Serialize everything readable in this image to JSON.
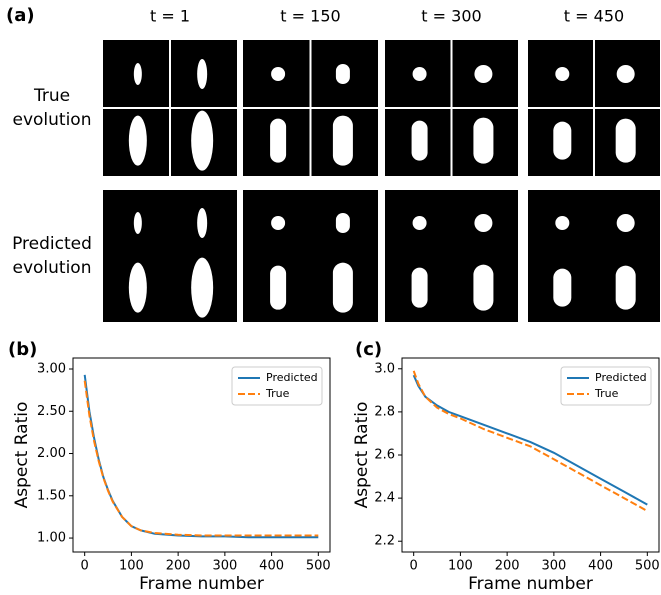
{
  "panel_a": {
    "label": "(a)",
    "columns": [
      "t = 1",
      "t = 150",
      "t = 300",
      "t = 450"
    ],
    "rows": [
      [
        "True",
        "evolution"
      ],
      [
        "Predicted",
        "evolution"
      ]
    ]
  },
  "chart_data": [
    {
      "type": "line",
      "label": "(b)",
      "xlabel": "Frame number",
      "ylabel": "Aspect Ratio",
      "x": [
        0,
        10,
        20,
        30,
        40,
        50,
        60,
        80,
        100,
        120,
        150,
        200,
        250,
        300,
        350,
        400,
        450,
        500
      ],
      "series": [
        {
          "name": "Predicted",
          "color": "#1f77b4",
          "dash": "solid",
          "values": [
            2.93,
            2.5,
            2.19,
            1.93,
            1.72,
            1.57,
            1.44,
            1.25,
            1.14,
            1.09,
            1.05,
            1.03,
            1.02,
            1.02,
            1.01,
            1.01,
            1.01,
            1.01
          ]
        },
        {
          "name": "True",
          "color": "#ff7f0e",
          "dash": "dashed",
          "values": [
            2.86,
            2.45,
            2.15,
            1.91,
            1.71,
            1.56,
            1.43,
            1.25,
            1.14,
            1.09,
            1.06,
            1.04,
            1.03,
            1.03,
            1.03,
            1.03,
            1.03,
            1.03
          ]
        }
      ],
      "xlim": [
        -25,
        525
      ],
      "xticks": [
        0,
        100,
        200,
        300,
        400,
        500
      ],
      "ylim": [
        0.835,
        3.13
      ],
      "yticks": [
        {
          "value": 1,
          "label": "1.00"
        },
        {
          "value": 1.5,
          "label": "1.50"
        },
        {
          "value": 2,
          "label": "2.00"
        },
        {
          "value": 2.5,
          "label": "2.50"
        },
        {
          "value": 3,
          "label": "3.00"
        }
      ],
      "legend": "upper right"
    },
    {
      "type": "line",
      "label": "(c)",
      "xlabel": "Frame number",
      "ylabel": "Aspect Ratio",
      "x": [
        0,
        10,
        25,
        50,
        75,
        100,
        150,
        200,
        250,
        300,
        350,
        400,
        450,
        500
      ],
      "series": [
        {
          "name": "Predicted",
          "color": "#1f77b4",
          "dash": "solid",
          "values": [
            2.97,
            2.92,
            2.87,
            2.83,
            2.8,
            2.78,
            2.74,
            2.7,
            2.66,
            2.61,
            2.55,
            2.49,
            2.43,
            2.37
          ]
        },
        {
          "name": "True",
          "color": "#ff7f0e",
          "dash": "dashed",
          "values": [
            2.99,
            2.93,
            2.87,
            2.82,
            2.79,
            2.77,
            2.72,
            2.68,
            2.64,
            2.58,
            2.52,
            2.46,
            2.4,
            2.34
          ]
        }
      ],
      "xlim": [
        -25,
        525
      ],
      "xticks": [
        0,
        100,
        200,
        300,
        400,
        500
      ],
      "ylim": [
        2.15,
        3.05
      ],
      "yticks": [
        2.2,
        2.4,
        2.6,
        2.8,
        {
          "value": 3,
          "label": "3.0"
        }
      ],
      "legend": "upper right"
    }
  ]
}
